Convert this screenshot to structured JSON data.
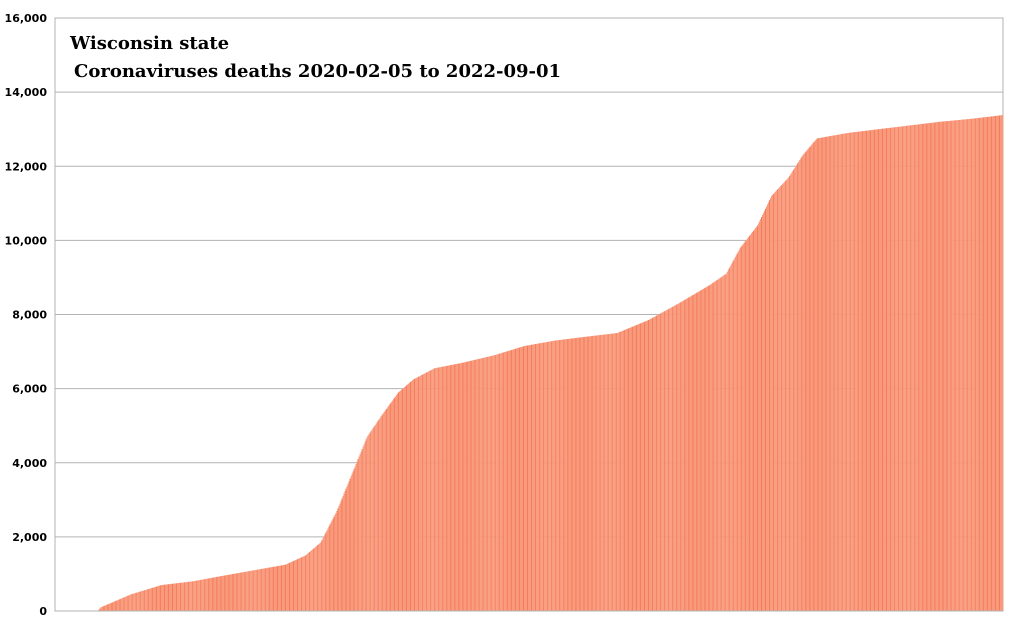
{
  "chart_data": {
    "type": "bar",
    "title": "Wisconsin state",
    "subtitle": "Coronaviruses deaths 2020-02-05 to 2022-09-01",
    "xlabel": "",
    "ylabel": "",
    "ylim": [
      0,
      16000
    ],
    "yticks": [
      "0",
      "2,000",
      "4,000",
      "6,000",
      "8,000",
      "10,000",
      "12,000",
      "14,000",
      "16,000"
    ],
    "grid": true,
    "legend": "none",
    "bar_color": "#f99a7c",
    "bar_edge_color": "#f47c5c",
    "x_start": "2020-02-05",
    "x_end": "2022-09-01",
    "anchors": [
      [
        "2020-02-05",
        0
      ],
      [
        "2020-03-18",
        0
      ],
      [
        "2020-03-21",
        100
      ],
      [
        "2020-04-20",
        450
      ],
      [
        "2020-05-20",
        700
      ],
      [
        "2020-06-20",
        800
      ],
      [
        "2020-07-20",
        950
      ],
      [
        "2020-08-20",
        1100
      ],
      [
        "2020-09-20",
        1250
      ],
      [
        "2020-10-10",
        1500
      ],
      [
        "2020-10-25",
        1850
      ],
      [
        "2020-11-10",
        2700
      ],
      [
        "2020-11-25",
        3700
      ],
      [
        "2020-12-10",
        4700
      ],
      [
        "2020-12-25",
        5300
      ],
      [
        "2021-01-10",
        5900
      ],
      [
        "2021-01-25",
        6250
      ],
      [
        "2021-02-15",
        6550
      ],
      [
        "2021-03-15",
        6700
      ],
      [
        "2021-04-15",
        6900
      ],
      [
        "2021-05-15",
        7150
      ],
      [
        "2021-06-15",
        7300
      ],
      [
        "2021-07-15",
        7400
      ],
      [
        "2021-08-15",
        7500
      ],
      [
        "2021-09-15",
        7850
      ],
      [
        "2021-10-15",
        8300
      ],
      [
        "2021-11-15",
        8800
      ],
      [
        "2021-12-01",
        9100
      ],
      [
        "2021-12-15",
        9800
      ],
      [
        "2022-01-01",
        10400
      ],
      [
        "2022-01-15",
        11200
      ],
      [
        "2022-02-01",
        11700
      ],
      [
        "2022-02-15",
        12300
      ],
      [
        "2022-03-01",
        12750
      ],
      [
        "2022-04-01",
        12900
      ],
      [
        "2022-05-01",
        13000
      ],
      [
        "2022-06-01",
        13100
      ],
      [
        "2022-07-01",
        13200
      ],
      [
        "2022-08-01",
        13280
      ],
      [
        "2022-09-01",
        13380
      ]
    ]
  }
}
